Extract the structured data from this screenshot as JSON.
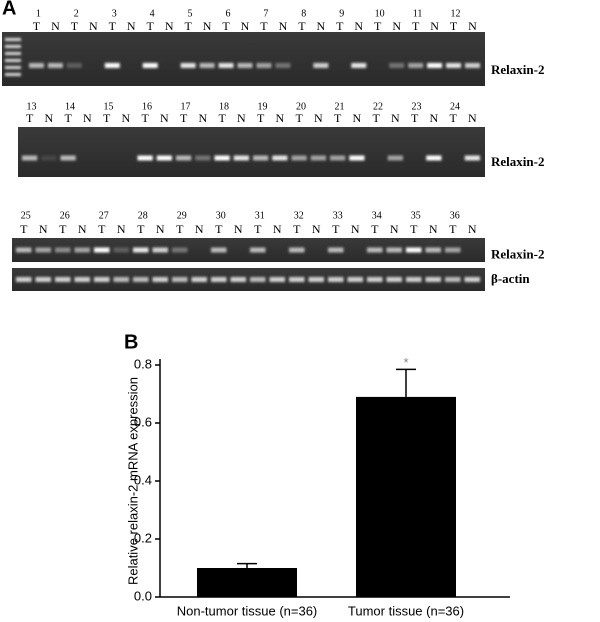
{
  "panel_a": {
    "label": "A",
    "lane_sub_labels": [
      "T",
      "N"
    ],
    "gel_rows": [
      {
        "lanes": [
          "1",
          "2",
          "3",
          "4",
          "5",
          "6",
          "7",
          "8",
          "9",
          "10",
          "11",
          "12"
        ],
        "label": "Relaxin-2"
      },
      {
        "lanes": [
          "13",
          "14",
          "15",
          "16",
          "17",
          "18",
          "19",
          "20",
          "21",
          "22",
          "23",
          "24"
        ],
        "label": "Relaxin-2"
      },
      {
        "lanes": [
          "25",
          "26",
          "27",
          "28",
          "29",
          "30",
          "31",
          "32",
          "33",
          "34",
          "35",
          "36"
        ],
        "label": "Relaxin-2"
      }
    ],
    "control_label": "β-actin"
  },
  "chart_data": {
    "type": "bar",
    "panel_label": "B",
    "y_label": "Relative relaxin-2 mRNA expression",
    "categories": [
      "Non-tumor tissue (n=36)",
      "Tumor tissue (n=36)"
    ],
    "values": [
      0.1,
      0.69
    ],
    "errors": [
      0.015,
      0.095
    ],
    "color": "#000000",
    "annotation": "*",
    "ylim": [
      0,
      0.8
    ],
    "yticks": [
      {
        "value": 0,
        "label": "0.0"
      },
      0.2,
      0.4,
      0.6,
      0.8
    ]
  }
}
